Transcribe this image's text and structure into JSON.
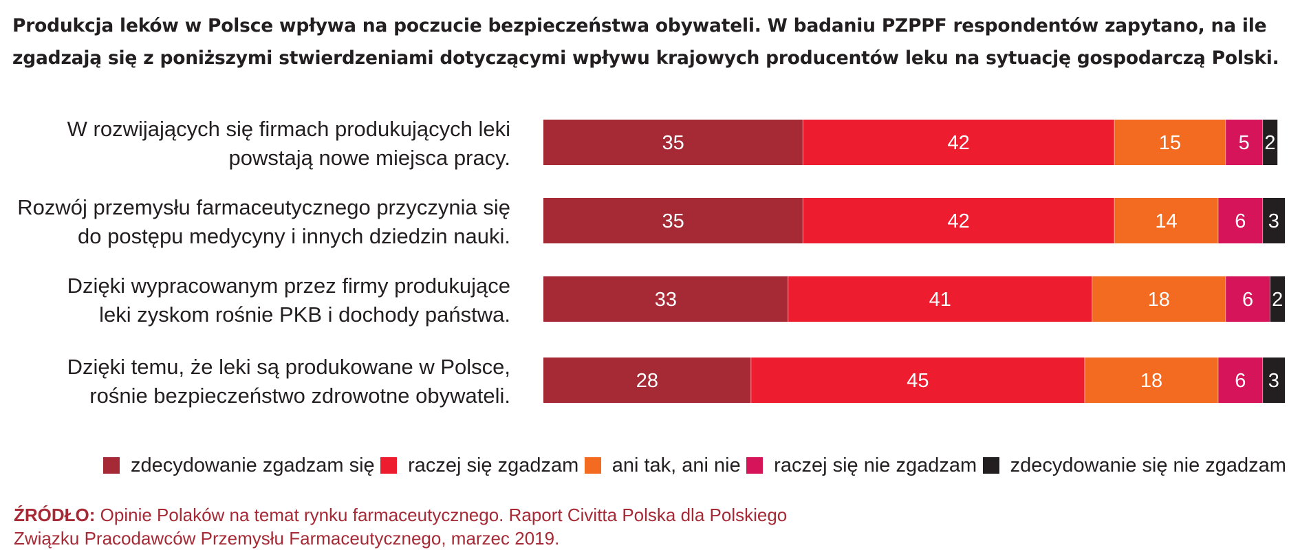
{
  "title": "Produkcja leków w Polsce wpływa na poczucie bezpieczeństwa obywateli. W badaniu PZPPF respondentów zapytano, na ile zgadzają się z poniższymi stwierdzeniami dotyczącymi wpływu krajowych producentów leku na sytuację gospodarczą Polski.",
  "source": {
    "label": "ŹRÓDŁO:",
    "text": " Opinie Polaków na temat rynku farmaceutycznego. Raport Civitta Polska dla Polskiego Związku Pracodawców Przemysłu Farmaceutycznego, marzec 2019."
  },
  "legend": [
    {
      "label": "zdecydowanie zgadzam się",
      "color": "#a52a36"
    },
    {
      "label": "raczej się zgadzam",
      "color": "#ed1c2e"
    },
    {
      "label": "ani tak, ani nie",
      "color": "#f26b21"
    },
    {
      "label": "raczej się nie zgadzam",
      "color": "#d5145a"
    },
    {
      "label": "zdecydowanie się nie zgadzam",
      "color": "#231f20"
    }
  ],
  "chart_data": {
    "type": "bar",
    "orientation": "horizontal",
    "stacked": true,
    "categories": [
      [
        "W rozwijających się firmach produkujących leki",
        "powstają nowe miejsca pracy."
      ],
      [
        "Rozwój przemysłu farmaceutycznego przyczynia się",
        "do postępu medycyny i innych dziedzin nauki."
      ],
      [
        "Dzięki wypracowanym przez firmy produkujące",
        "leki zyskom rośnie PKB i dochody państwa."
      ],
      [
        "Dzięki temu, że leki są produkowane w Polsce,",
        "rośnie bezpieczeństwo zdrowotne obywateli."
      ]
    ],
    "series": [
      {
        "name": "zdecydowanie zgadzam się",
        "color": "#a52a36",
        "values": [
          35,
          35,
          33,
          28
        ]
      },
      {
        "name": "raczej się zgadzam",
        "color": "#ed1c2e",
        "values": [
          42,
          42,
          41,
          45
        ]
      },
      {
        "name": "ani tak, ani nie",
        "color": "#f26b21",
        "values": [
          15,
          14,
          18,
          18
        ]
      },
      {
        "name": "raczej się nie zgadzam",
        "color": "#d5145a",
        "values": [
          5,
          6,
          6,
          6
        ]
      },
      {
        "name": "zdecydowanie się nie zgadzam",
        "color": "#231f20",
        "values": [
          2,
          3,
          2,
          3
        ]
      }
    ],
    "xlim": [
      0,
      100
    ],
    "legend_position": "bottom",
    "grid": false
  }
}
